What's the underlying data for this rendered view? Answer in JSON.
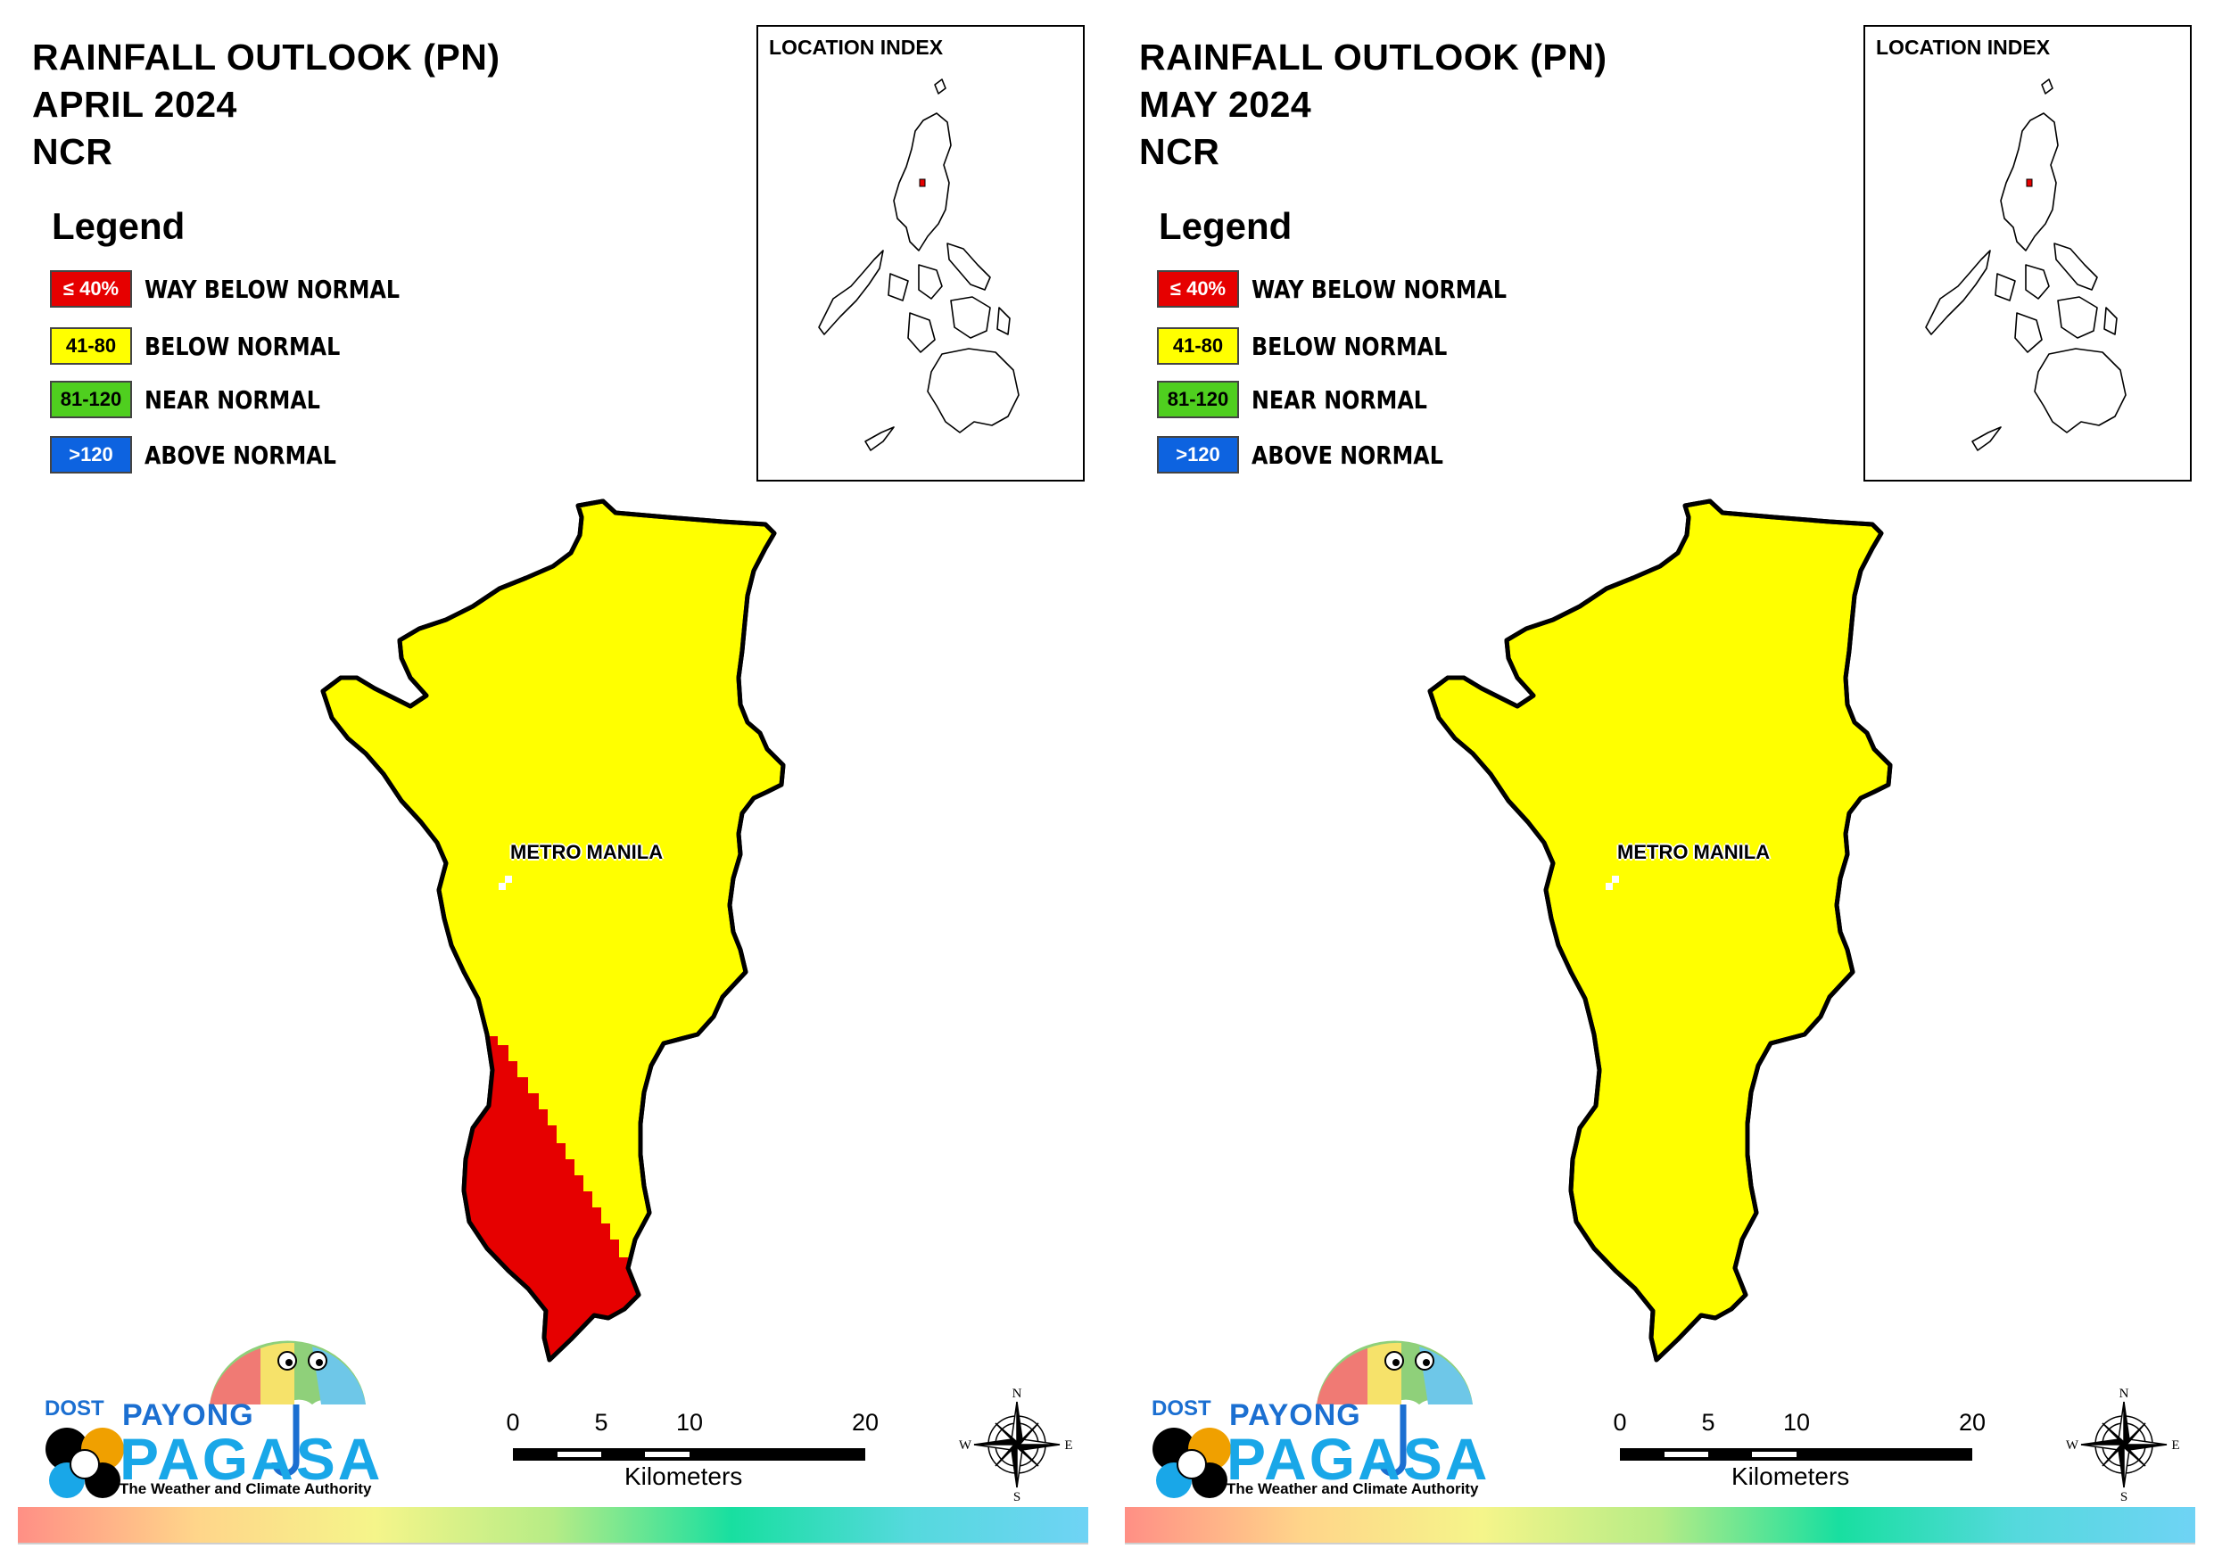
{
  "panels": [
    {
      "title_line1": "RAINFALL OUTLOOK (PN)",
      "title_line2": "APRIL 2024",
      "title_line3": "NCR",
      "show_red_area": true
    },
    {
      "title_line1": "RAINFALL OUTLOOK (PN)",
      "title_line2": "MAY 2024",
      "title_line3": "NCR",
      "show_red_area": false
    }
  ],
  "legend": {
    "title": "Legend",
    "items": [
      {
        "code": "≤ 40%",
        "label": "WAY BELOW NORMAL",
        "color": "#e60000",
        "text_color": "#ffffff"
      },
      {
        "code": "41-80",
        "label": "BELOW NORMAL",
        "color": "#ffff00",
        "text_color": "#000000"
      },
      {
        "code": "81-120",
        "label": "NEAR NORMAL",
        "color": "#4fcf1f",
        "text_color": "#000000"
      },
      {
        "code": ">120",
        "label": "ABOVE NORMAL",
        "color": "#0d63e0",
        "text_color": "#ffffff"
      }
    ]
  },
  "inset": {
    "title": "LOCATION INDEX"
  },
  "map": {
    "place_label": "METRO MANILA",
    "fill_color": "#ffff00",
    "red_color": "#e60000"
  },
  "scalebar": {
    "ticks": [
      "0",
      "5",
      "10",
      "20"
    ],
    "unit": "Kilometers"
  },
  "compass": {
    "n": "N",
    "s": "S",
    "e": "E",
    "w": "W"
  },
  "logo": {
    "dost": "DOST",
    "payong": "PAYONG",
    "pagasa": "PAGASA",
    "tagline": "The Weather and Climate Authority"
  }
}
